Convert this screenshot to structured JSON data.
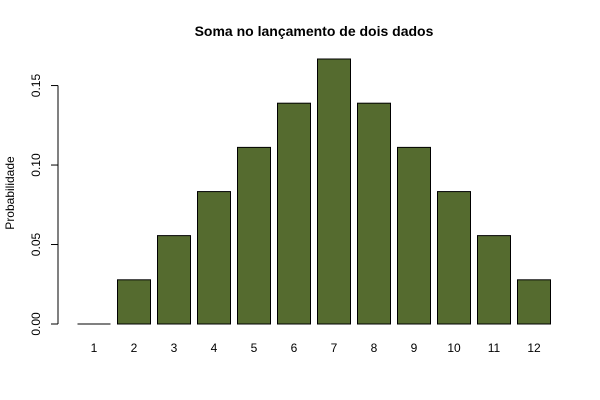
{
  "chart_data": {
    "type": "bar",
    "title": "Soma no lançamento de dois dados",
    "xlabel": "",
    "ylabel": "Probabilidade",
    "categories": [
      "1",
      "2",
      "3",
      "4",
      "5",
      "6",
      "7",
      "8",
      "9",
      "10",
      "11",
      "12"
    ],
    "values": [
      0,
      0.0278,
      0.0556,
      0.0833,
      0.1111,
      0.1389,
      0.1667,
      0.1389,
      0.1111,
      0.0833,
      0.0556,
      0.0278
    ],
    "ylim": [
      0,
      0.1667
    ],
    "yticks": [
      0.0,
      0.05,
      0.1,
      0.15
    ],
    "ytick_labels": [
      "0.00",
      "0.05",
      "0.10",
      "0.15"
    ],
    "grid": false,
    "bar_color": "#556b2f",
    "bar_edge_color": "#000000"
  }
}
